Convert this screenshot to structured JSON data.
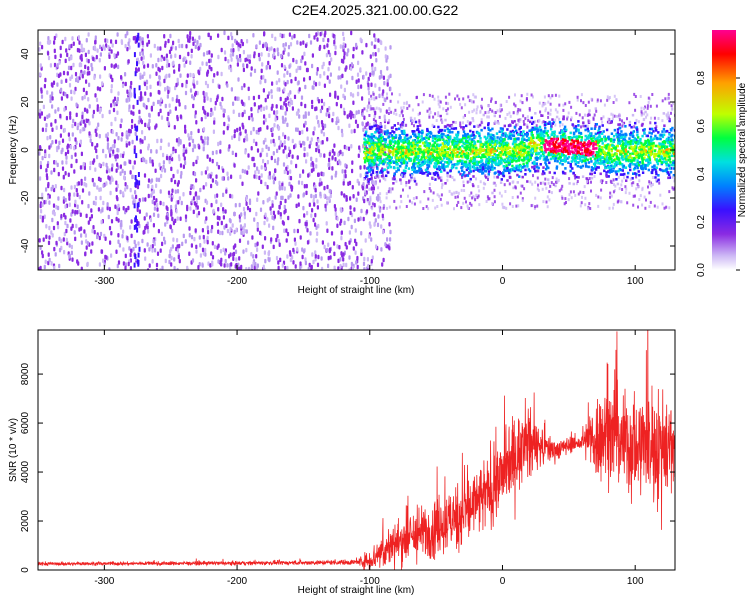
{
  "page_title": "C2E4.2025.321.00.00.G22",
  "colors": {
    "background": "#ffffff",
    "axis": "#000000",
    "snr_line": "#ee2222",
    "noise_dots": "#7a30e0",
    "colormap": [
      "#ffffff",
      "#cdb8f5",
      "#8a2be2",
      "#3a10ff",
      "#0080ff",
      "#00e0e0",
      "#00ff40",
      "#c0ff00",
      "#ffa000",
      "#ff0000",
      "#ff0090"
    ]
  },
  "chart_data": [
    {
      "type": "heatmap",
      "title": "",
      "xlabel": "Height of straight line (km)",
      "ylabel": "Frequency (Hz)",
      "xlim": [
        -350,
        130
      ],
      "ylim": [
        -50,
        50
      ],
      "x_ticks": [
        -300,
        -200,
        -100,
        0,
        100
      ],
      "x_tick_labels": [
        "-300",
        "-200",
        "-100",
        "0",
        "100"
      ],
      "y_ticks": [
        -40,
        -20,
        0,
        20,
        40
      ],
      "y_tick_labels": [
        "-40",
        "-20",
        "0",
        "20",
        "40"
      ],
      "colorbar": {
        "label": "Normalized spectral amplitude",
        "range": [
          0.0,
          1.0
        ],
        "ticks": [
          0.0,
          0.2,
          0.4,
          0.6,
          0.8
        ],
        "tick_labels": [
          "0.0",
          "0.2",
          "0.4",
          "0.6",
          "0.8"
        ]
      },
      "regions": [
        {
          "x_range": [
            -350,
            -105
          ],
          "y_range": [
            -50,
            50
          ],
          "amplitude": 0.08,
          "pattern": "scattered noise across full band"
        },
        {
          "x_range": [
            -105,
            130
          ],
          "y_range": [
            -12,
            12
          ],
          "amplitude": 0.3,
          "pattern": "signal band centered on 0 Hz"
        },
        {
          "x_range": [
            30,
            70
          ],
          "y_range": [
            -4,
            4
          ],
          "amplitude": 0.9,
          "pattern": "peak amplitude near 0 Hz"
        }
      ]
    },
    {
      "type": "line",
      "title": "",
      "xlabel": "Height of straight line (km)",
      "ylabel": "SNR (10 * v/v)",
      "xlim": [
        -350,
        130
      ],
      "ylim": [
        0,
        9800
      ],
      "x_ticks": [
        -300,
        -200,
        -100,
        0,
        100
      ],
      "x_tick_labels": [
        "-300",
        "-200",
        "-100",
        "0",
        "100"
      ],
      "y_ticks": [
        0,
        2000,
        4000,
        6000,
        8000
      ],
      "y_tick_labels": [
        "0",
        "2000",
        "4000",
        "6000",
        "8000"
      ],
      "series": [
        {
          "name": "",
          "x": [
            -350,
            -300,
            -250,
            -200,
            -150,
            -110,
            -100,
            -90,
            -80,
            -70,
            -60,
            -50,
            -40,
            -30,
            -20,
            -10,
            0,
            10,
            20,
            30,
            40,
            50,
            60,
            70,
            80,
            90,
            100,
            110,
            120,
            130
          ],
          "y_mean": [
            250,
            260,
            270,
            280,
            300,
            320,
            400,
            800,
            1100,
            1300,
            1500,
            1800,
            2000,
            2300,
            2700,
            3200,
            3900,
            4700,
            5200,
            5000,
            4900,
            5100,
            5200,
            5400,
            5600,
            5300,
            5000,
            5200,
            5000,
            5300
          ],
          "y_spread": [
            60,
            60,
            70,
            70,
            80,
            100,
            400,
            700,
            800,
            900,
            1000,
            1100,
            1200,
            1300,
            1300,
            1400,
            1400,
            1500,
            1200,
            700,
            400,
            300,
            300,
            1600,
            1800,
            1800,
            1900,
            2000,
            2200,
            2000
          ]
        }
      ]
    }
  ]
}
